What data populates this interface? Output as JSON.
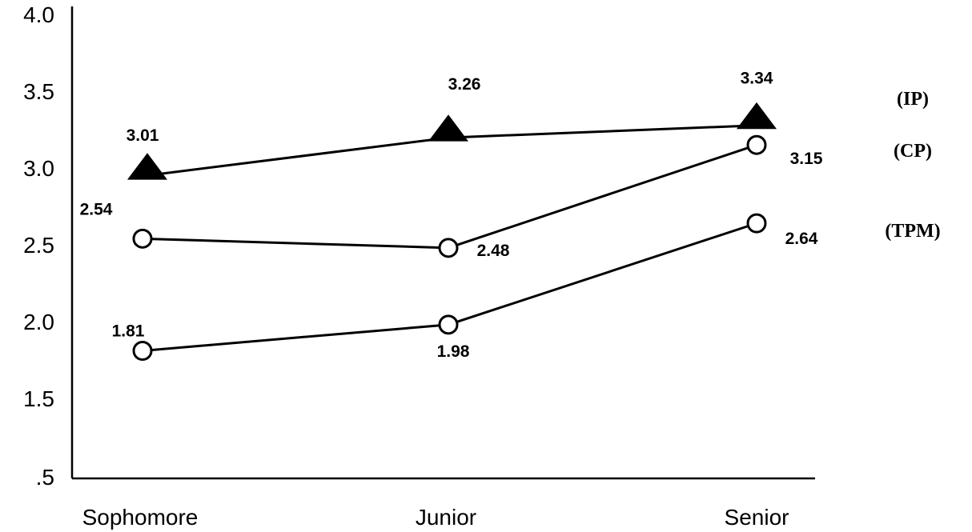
{
  "chart_data": {
    "type": "line",
    "title": "",
    "xlabel": "",
    "ylabel": "",
    "categories": [
      "Sophomore",
      "Junior",
      "Senior"
    ],
    "y_ticks": [
      {
        "value": 4.0,
        "label": "4.0"
      },
      {
        "value": 3.5,
        "label": "3.5"
      },
      {
        "value": 3.0,
        "label": "3.0"
      },
      {
        "value": 2.5,
        "label": "2.5"
      },
      {
        "value": 2.0,
        "label": "2.0"
      },
      {
        "value": 1.5,
        "label": "1.5"
      },
      {
        "value": 0.5,
        "label": ".5"
      }
    ],
    "ylim": [
      0.5,
      4.0
    ],
    "grid": false,
    "legend_placement": "right",
    "series": [
      {
        "name": "(IP)",
        "marker": "triangle",
        "values": [
          3.01,
          3.26,
          3.34
        ],
        "value_labels": [
          "3.01",
          "3.26",
          "3.34"
        ]
      },
      {
        "name": "(CP)",
        "marker": "circle",
        "values": [
          2.54,
          2.48,
          3.15
        ],
        "value_labels": [
          "2.54",
          "2.48",
          "3.15"
        ]
      },
      {
        "name": "(TPM)",
        "marker": "circle",
        "values": [
          1.81,
          1.98,
          2.64
        ],
        "value_labels": [
          "1.81",
          "1.98",
          "2.64"
        ]
      }
    ]
  }
}
